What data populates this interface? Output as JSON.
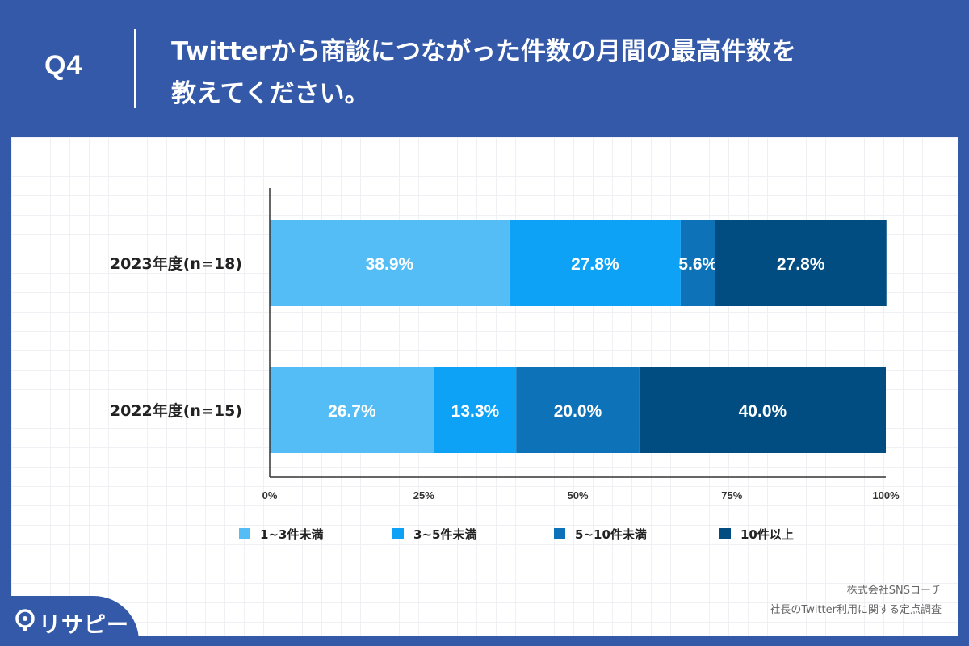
{
  "header": {
    "question": "Q4",
    "title_line1": "Twitterから商談につながった件数の月間の最高件数を",
    "title_line2": "教えてください。"
  },
  "chart_data": {
    "type": "bar",
    "orientation": "horizontal",
    "stacked": "percent",
    "categories": [
      "2023年度(n=18)",
      "2022年度(n=15)"
    ],
    "series": [
      {
        "name": "1~3件未満",
        "color": "#55bdf6",
        "values": [
          38.9,
          26.7
        ],
        "labels": [
          "38.9%",
          "26.7%"
        ]
      },
      {
        "name": "3~5件未満",
        "color": "#0ea2f7",
        "values": [
          27.8,
          13.3
        ],
        "labels": [
          "27.8%",
          "13.3%"
        ]
      },
      {
        "name": "5~10件未満",
        "color": "#0d72b8",
        "values": [
          5.6,
          20.0
        ],
        "labels": [
          "5.6%",
          "20.0%"
        ]
      },
      {
        "name": "10件以上",
        "color": "#014c81",
        "values": [
          27.8,
          40.0
        ],
        "labels": [
          "27.8%",
          "40.0%"
        ]
      }
    ],
    "x_ticks": [
      "0%",
      "25%",
      "50%",
      "75%",
      "100%"
    ],
    "xlim": [
      0,
      100
    ],
    "grid": false,
    "legend_position": "bottom"
  },
  "footer": {
    "source_line1": "株式会社SNSコーチ",
    "source_line2": "社長のTwitter利用に関する定点調査"
  },
  "logo": {
    "text": "リサピー"
  }
}
